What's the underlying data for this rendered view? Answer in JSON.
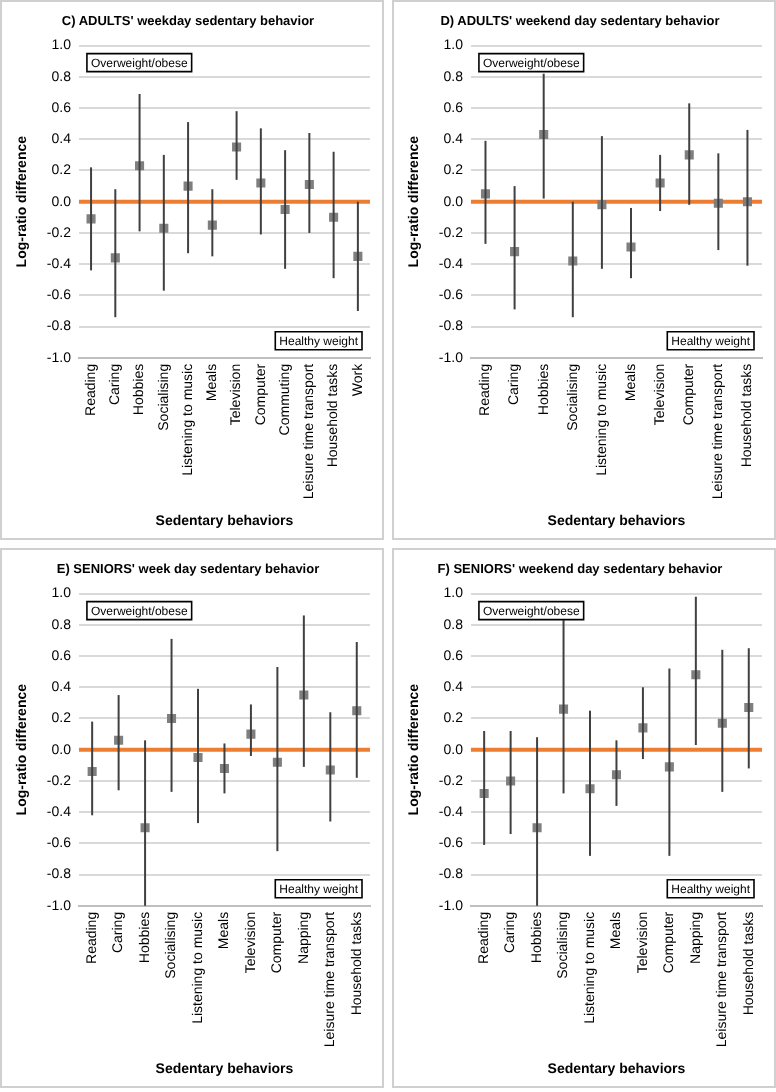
{
  "chart_data": [
    {
      "type": "scatter",
      "title": "C) ADULTS' weekday sedentary behavior",
      "xlabel": "Sedentary behaviors",
      "ylabel": "Log-ratio difference",
      "categories": [
        "Reading",
        "Caring",
        "Hobbies",
        "Socialising",
        "Listening to music",
        "Meals",
        "Television",
        "Computer",
        "Commuting",
        "Leisure time transport",
        "Household tasks",
        "Work"
      ],
      "series": [
        {
          "color": "#7f7f7f",
          "values": [
            -0.11,
            -0.36,
            0.23,
            -0.17,
            0.1,
            -0.15,
            0.35,
            0.12,
            -0.05,
            0.11,
            -0.1,
            -0.35
          ],
          "errors": [
            [
              -0.44,
              0.22
            ],
            [
              -0.74,
              0.08
            ],
            [
              -0.19,
              0.69
            ],
            [
              -0.57,
              0.3
            ],
            [
              -0.33,
              0.51
            ],
            [
              -0.35,
              0.08
            ],
            [
              0.14,
              0.58
            ],
            [
              -0.21,
              0.47
            ],
            [
              -0.43,
              0.33
            ],
            [
              -0.2,
              0.44
            ],
            [
              -0.49,
              0.32
            ],
            [
              -0.7,
              0.0
            ]
          ]
        }
      ],
      "ylim": [
        -1,
        1
      ],
      "yticks": [
        {
          "value": -1,
          "label": "-1.0"
        },
        {
          "value": -0.8,
          "label": "-0.8"
        },
        {
          "value": -0.6,
          "label": "-0.6"
        },
        {
          "value": -0.4,
          "label": "-0.4"
        },
        {
          "value": -0.2,
          "label": "-0.2"
        },
        {
          "value": 0,
          "label": "0.0"
        },
        {
          "value": 0.2,
          "label": "0.2"
        },
        {
          "value": 0.4,
          "label": "0.4"
        },
        {
          "value": 0.6,
          "label": "0.6"
        },
        {
          "value": 0.8,
          "label": "0.8"
        },
        {
          "value": 1,
          "label": "1.0"
        }
      ],
      "grid": "y",
      "marker": "square",
      "legend": false,
      "ref_lines": [
        {
          "axis": "y",
          "value": 0,
          "color": "#ed7d31"
        }
      ],
      "annotations": [
        "Overweight/obese",
        "Healthy weight"
      ]
    },
    {
      "type": "scatter",
      "title": "D) ADULTS' weekend day sedentary behavior",
      "xlabel": "Sedentary behaviors",
      "ylabel": "Log-ratio difference",
      "categories": [
        "Reading",
        "Caring",
        "Hobbies",
        "Socialising",
        "Listening to music",
        "Meals",
        "Television",
        "Computer",
        "Leisure time transport",
        "Household tasks"
      ],
      "series": [
        {
          "color": "#7f7f7f",
          "values": [
            0.05,
            -0.32,
            0.43,
            -0.38,
            -0.02,
            -0.29,
            0.12,
            0.3,
            -0.01,
            0.0
          ],
          "errors": [
            [
              -0.27,
              0.39
            ],
            [
              -0.69,
              0.1
            ],
            [
              0.02,
              0.82
            ],
            [
              -0.74,
              0.0
            ],
            [
              -0.43,
              0.42
            ],
            [
              -0.49,
              -0.04
            ],
            [
              -0.06,
              0.3
            ],
            [
              -0.02,
              0.63
            ],
            [
              -0.31,
              0.31
            ],
            [
              -0.41,
              0.46
            ]
          ]
        }
      ],
      "ylim": [
        -1,
        1
      ],
      "yticks": [
        {
          "value": -1,
          "label": "-1.0"
        },
        {
          "value": -0.8,
          "label": "-0.8"
        },
        {
          "value": -0.6,
          "label": "-0.6"
        },
        {
          "value": -0.4,
          "label": "-0.4"
        },
        {
          "value": -0.2,
          "label": "-0.2"
        },
        {
          "value": 0,
          "label": "0.0"
        },
        {
          "value": 0.2,
          "label": "0.2"
        },
        {
          "value": 0.4,
          "label": "0.4"
        },
        {
          "value": 0.6,
          "label": "0.6"
        },
        {
          "value": 0.8,
          "label": "0.8"
        },
        {
          "value": 1,
          "label": "1.0"
        }
      ],
      "grid": "y",
      "marker": "square",
      "legend": false,
      "ref_lines": [
        {
          "axis": "y",
          "value": 0,
          "color": "#ed7d31"
        }
      ],
      "annotations": [
        "Overweight/obese",
        "Healthy weight"
      ]
    },
    {
      "type": "scatter",
      "title": "E) SENIORS' week day sedentary behavior",
      "xlabel": "Sedentary behaviors",
      "ylabel": "Log-ratio difference",
      "categories": [
        "Reading",
        "Caring",
        "Hobbies",
        "Socialising",
        "Listening to music",
        "Meals",
        "Television",
        "Computer",
        "Napping",
        "Leisure time transport",
        "Household tasks"
      ],
      "series": [
        {
          "color": "#7f7f7f",
          "values": [
            -0.14,
            0.06,
            -0.5,
            0.2,
            -0.05,
            -0.12,
            0.1,
            -0.08,
            0.35,
            -0.13,
            0.25
          ],
          "errors": [
            [
              -0.42,
              0.18
            ],
            [
              -0.26,
              0.35
            ],
            [
              -1.0,
              0.06
            ],
            [
              -0.27,
              0.71
            ],
            [
              -0.47,
              0.39
            ],
            [
              -0.28,
              0.04
            ],
            [
              -0.04,
              0.29
            ],
            [
              -0.65,
              0.53
            ],
            [
              -0.11,
              0.86
            ],
            [
              -0.46,
              0.24
            ],
            [
              -0.18,
              0.69
            ]
          ]
        }
      ],
      "ylim": [
        -1,
        1
      ],
      "yticks": [
        {
          "value": -1,
          "label": "-1.0"
        },
        {
          "value": -0.8,
          "label": "-0.8"
        },
        {
          "value": -0.6,
          "label": "-0.6"
        },
        {
          "value": -0.4,
          "label": "-0.4"
        },
        {
          "value": -0.2,
          "label": "-0.2"
        },
        {
          "value": 0,
          "label": "0.0"
        },
        {
          "value": 0.2,
          "label": "0.2"
        },
        {
          "value": 0.4,
          "label": "0.4"
        },
        {
          "value": 0.6,
          "label": "0.6"
        },
        {
          "value": 0.8,
          "label": "0.8"
        },
        {
          "value": 1,
          "label": "1.0"
        }
      ],
      "grid": "y",
      "marker": "square",
      "legend": false,
      "ref_lines": [
        {
          "axis": "y",
          "value": 0,
          "color": "#ed7d31"
        }
      ],
      "annotations": [
        "Overweight/obese",
        "Healthy weight"
      ]
    },
    {
      "type": "scatter",
      "title": "F) SENIORS' weekend day sedentary behavior",
      "xlabel": "Sedentary behaviors",
      "ylabel": "Log-ratio difference",
      "categories": [
        "Reading",
        "Caring",
        "Hobbies",
        "Socialising",
        "Listening to music",
        "Meals",
        "Television",
        "Computer",
        "Napping",
        "Leisure time transport",
        "Household tasks"
      ],
      "series": [
        {
          "color": "#7f7f7f",
          "values": [
            -0.28,
            -0.2,
            -0.5,
            0.26,
            -0.25,
            -0.16,
            0.14,
            -0.11,
            0.48,
            0.17,
            0.27
          ],
          "errors": [
            [
              -0.61,
              0.12
            ],
            [
              -0.54,
              0.12
            ],
            [
              -1.0,
              0.08
            ],
            [
              -0.28,
              0.83
            ],
            [
              -0.68,
              0.25
            ],
            [
              -0.36,
              0.06
            ],
            [
              -0.06,
              0.4
            ],
            [
              -0.68,
              0.52
            ],
            [
              0.03,
              0.98
            ],
            [
              -0.27,
              0.64
            ],
            [
              -0.12,
              0.65
            ]
          ]
        }
      ],
      "ylim": [
        -1,
        1
      ],
      "yticks": [
        {
          "value": -1,
          "label": "-1.0"
        },
        {
          "value": -0.8,
          "label": "-0.8"
        },
        {
          "value": -0.6,
          "label": "-0.6"
        },
        {
          "value": -0.4,
          "label": "-0.4"
        },
        {
          "value": -0.2,
          "label": "-0.2"
        },
        {
          "value": 0,
          "label": "0.0"
        },
        {
          "value": 0.2,
          "label": "0.2"
        },
        {
          "value": 0.4,
          "label": "0.4"
        },
        {
          "value": 0.6,
          "label": "0.6"
        },
        {
          "value": 0.8,
          "label": "0.8"
        },
        {
          "value": 1,
          "label": "1.0"
        }
      ],
      "grid": "y",
      "marker": "square",
      "legend": false,
      "ref_lines": [
        {
          "axis": "y",
          "value": 0,
          "color": "#ed7d31"
        }
      ],
      "annotations": [
        "Overweight/obese",
        "Healthy weight"
      ]
    }
  ]
}
